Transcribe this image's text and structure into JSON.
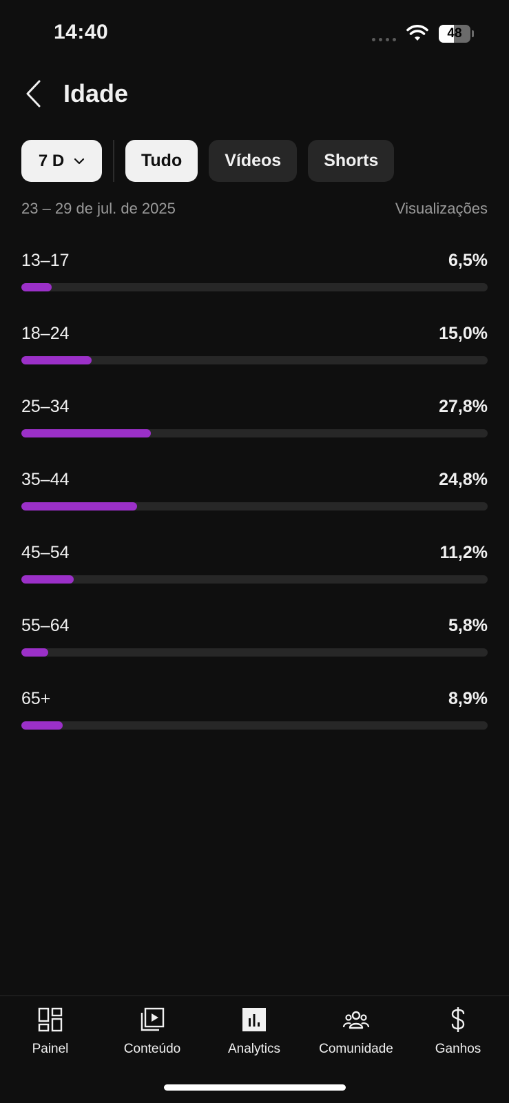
{
  "status_bar": {
    "time": "14:40",
    "battery": "48",
    "battery_level": 0.48
  },
  "header": {
    "title": "Idade"
  },
  "filters": {
    "period": "7 D",
    "chips": [
      {
        "label": "Tudo",
        "active": true
      },
      {
        "label": "Vídeos",
        "active": false
      },
      {
        "label": "Shorts",
        "active": false
      }
    ]
  },
  "meta": {
    "date_range": "23 – 29 de jul. de 2025",
    "metric": "Visualizações"
  },
  "colors": {
    "accent": "#9b30c8",
    "track": "#272727",
    "background": "#0f0f0f"
  },
  "age_groups": [
    {
      "label": "13–17",
      "value_text": "6,5%",
      "value": 6.5
    },
    {
      "label": "18–24",
      "value_text": "15,0%",
      "value": 15.0
    },
    {
      "label": "25–34",
      "value_text": "27,8%",
      "value": 27.8
    },
    {
      "label": "35–44",
      "value_text": "24,8%",
      "value": 24.8
    },
    {
      "label": "45–54",
      "value_text": "11,2%",
      "value": 11.2
    },
    {
      "label": "55–64",
      "value_text": "5,8%",
      "value": 5.8
    },
    {
      "label": "65+",
      "value_text": "8,9%",
      "value": 8.9
    }
  ],
  "bottom_nav": [
    {
      "label": "Painel",
      "icon": "dashboard-icon"
    },
    {
      "label": "Conteúdo",
      "icon": "content-icon"
    },
    {
      "label": "Analytics",
      "icon": "analytics-icon",
      "active": true
    },
    {
      "label": "Comunidade",
      "icon": "community-icon"
    },
    {
      "label": "Ganhos",
      "icon": "earnings-icon"
    }
  ]
}
